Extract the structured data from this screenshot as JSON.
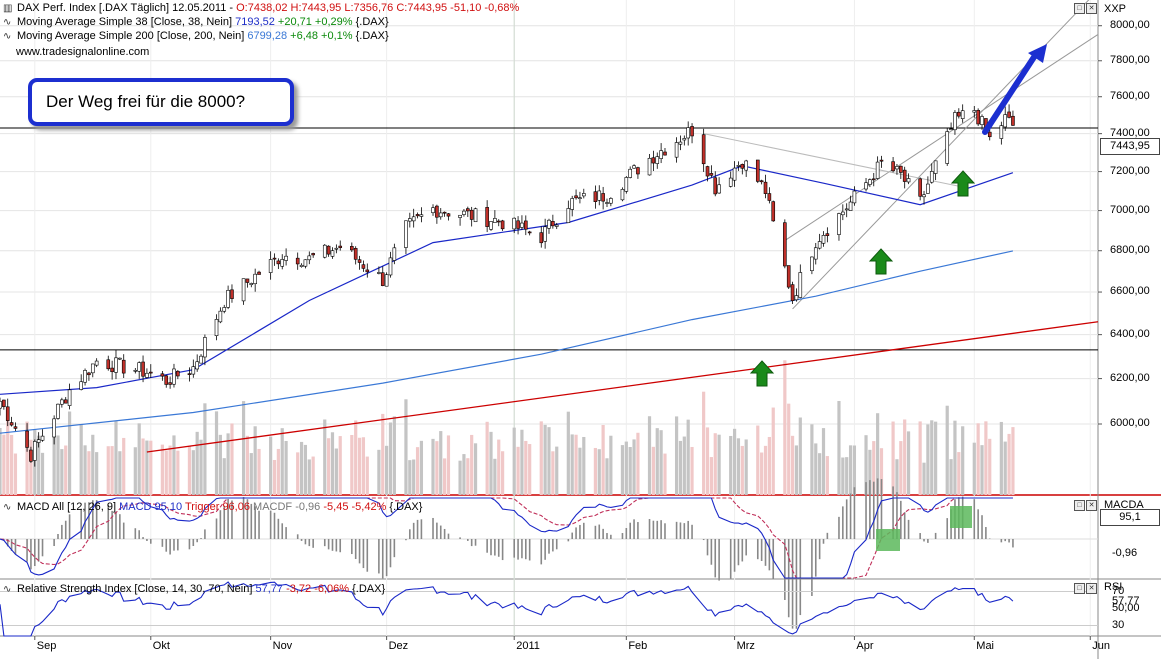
{
  "header": {
    "main_prefix": "DAX Perf. Index [.DAX Täglich] 12.05.2011 - ",
    "main_ohlc": "O:7438,02 H:7443,95 L:7356,76 C:7443,95 -51,10 -0,68%",
    "ma38_prefix": "Moving Average Simple 38 [Close, 38, Nein] ",
    "ma38_value": "7193,52",
    "ma38_change": "+20,71 +0,29%",
    "ma38_suffix": " {.DAX}",
    "ma200_prefix": "Moving Average Simple 200 [Close, 200, Nein] ",
    "ma200_value": "6799,28",
    "ma200_change": "+6,48 +0,1%",
    "ma200_suffix": " {.DAX}",
    "website": "www.tradesignalonline.com"
  },
  "callout": "Der Weg frei für die 8000?",
  "main_panel": {
    "symbol": "XXP",
    "price_badge": "7443,95",
    "y_ticks": [
      "8000,00",
      "7800,00",
      "7600,00",
      "7400,00",
      "7200,00",
      "7000,00",
      "6800,00",
      "6600,00",
      "6400,00",
      "6200,00",
      "6000,00"
    ]
  },
  "macd_panel": {
    "title_prefix": "MACD All [12, 26, 9] ",
    "macd": "MACD 95,10",
    "trigger": "Trigger 96,06",
    "macdf": "MACDF -0,96",
    "change": "-5,45 -5,42%",
    "suffix": " {.DAX}",
    "name": "MACDA",
    "value_badge": "95,1",
    "value_badge2": "-0,96"
  },
  "rsi_panel": {
    "title_prefix": "Relative Strength Index [Close, 14, 30, 70, Nein] ",
    "value": "57,77",
    "change": "-3,72 -6,06%",
    "suffix": " {.DAX}",
    "name": "RSI",
    "y_ticks": [
      "70",
      "57,77",
      "50,00",
      "30"
    ]
  },
  "x_ticks": [
    "Sep",
    "Okt",
    "Nov",
    "Dez",
    "2011",
    "Feb",
    "Mrz",
    "Apr",
    "Mai",
    "Jun"
  ],
  "colors": {
    "up": "#ffffff",
    "down": "#c0302a",
    "ma38": "#1a28c8",
    "ma200": "#3a78d6",
    "trend": "#cc0000",
    "arrow_blue": "#1c2fd0",
    "arrow_green": "#1a8a1a",
    "macd_box": "#5cb85c"
  },
  "chart_data": {
    "type": "candlestick",
    "title": "DAX Perf. Index",
    "x_range": [
      "2010-08-23",
      "2011-06-03"
    ],
    "y_range": [
      5880,
      8150
    ],
    "y_scale": "log",
    "anchors": [
      [
        "2010-08-23",
        6100
      ],
      [
        "2010-08-31",
        5870
      ],
      [
        "2010-09-10",
        6150
      ],
      [
        "2010-09-17",
        6280
      ],
      [
        "2010-09-30",
        6230
      ],
      [
        "2010-10-05",
        6190
      ],
      [
        "2010-10-12",
        6250
      ],
      [
        "2010-10-20",
        6560
      ],
      [
        "2010-11-04",
        6780
      ],
      [
        "2010-11-11",
        6760
      ],
      [
        "2010-11-19",
        6820
      ],
      [
        "2010-11-30",
        6660
      ],
      [
        "2010-12-06",
        6910
      ],
      [
        "2010-12-13",
        7010
      ],
      [
        "2010-12-30",
        6950
      ],
      [
        "2011-01-10",
        6870
      ],
      [
        "2011-01-17",
        7040
      ],
      [
        "2011-01-27",
        7080
      ],
      [
        "2011-02-07",
        7270
      ],
      [
        "2011-02-18",
        7420
      ],
      [
        "2011-02-24",
        7120
      ],
      [
        "2011-03-03",
        7260
      ],
      [
        "2011-03-09",
        7100
      ],
      [
        "2011-03-11",
        6930
      ],
      [
        "2011-03-16",
        6570
      ],
      [
        "2011-03-22",
        6850
      ],
      [
        "2011-03-31",
        7040
      ],
      [
        "2011-04-08",
        7240
      ],
      [
        "2011-04-13",
        7180
      ],
      [
        "2011-04-18",
        7040
      ],
      [
        "2011-04-27",
        7470
      ],
      [
        "2011-05-02",
        7530
      ],
      [
        "2011-05-06",
        7370
      ],
      [
        "2011-05-10",
        7480
      ],
      [
        "2011-05-12",
        7444
      ]
    ],
    "moving_averages": {
      "ma38": [
        [
          "2010-08-23",
          6130
        ],
        [
          "2010-09-17",
          6160
        ],
        [
          "2010-10-12",
          6240
        ],
        [
          "2010-11-11",
          6560
        ],
        [
          "2010-12-13",
          6840
        ],
        [
          "2011-01-17",
          6940
        ],
        [
          "2011-02-18",
          7130
        ],
        [
          "2011-03-03",
          7230
        ],
        [
          "2011-03-24",
          7140
        ],
        [
          "2011-04-18",
          7030
        ],
        [
          "2011-05-12",
          7194
        ]
      ],
      "ma200": [
        [
          "2010-08-23",
          5960
        ],
        [
          "2010-10-12",
          6050
        ],
        [
          "2010-11-30",
          6180
        ],
        [
          "2011-01-10",
          6310
        ],
        [
          "2011-02-18",
          6470
        ],
        [
          "2011-03-22",
          6580
        ],
        [
          "2011-04-18",
          6700
        ],
        [
          "2011-05-12",
          6799
        ]
      ]
    },
    "trend_line": [
      [
        "2010-09-30",
        5880
      ],
      [
        "2011-06-03",
        6460
      ]
    ],
    "horizontal_lines": [
      7430,
      6330
    ],
    "channel": [
      [
        [
          "2011-03-16",
          6520
        ],
        [
          "2011-06-01",
          8160
        ]
      ],
      [
        [
          "2011-03-14",
          6850
        ],
        [
          "2011-06-03",
          7950
        ]
      ]
    ],
    "macd_ylim": [
      -120,
      120
    ],
    "rsi_ylim": [
      20,
      80
    ]
  }
}
